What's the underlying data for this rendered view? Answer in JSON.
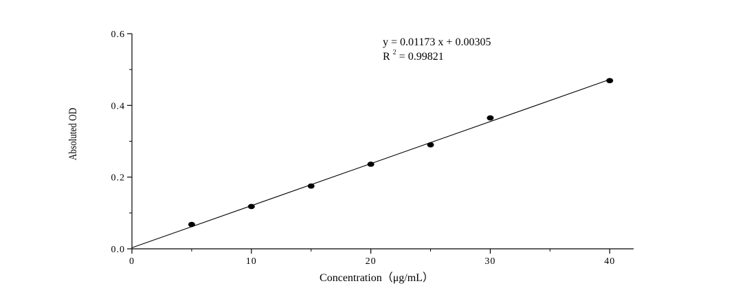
{
  "chart_data": {
    "type": "scatter",
    "title": "",
    "xlabel": "Concentration（μg/mL）",
    "ylabel": "Absoluted OD",
    "xlim": [
      0,
      42
    ],
    "ylim": [
      0,
      0.6
    ],
    "x_ticks": [
      0,
      10,
      20,
      30,
      40
    ],
    "x_tick_labels": [
      "0",
      "10",
      "20",
      "30",
      "40"
    ],
    "y_ticks": [
      0.0,
      0.2,
      0.4,
      0.6
    ],
    "y_tick_labels": [
      "0.0",
      "0.2",
      "0.4",
      "0.6"
    ],
    "grid": false,
    "series": [
      {
        "x": [
          5,
          10,
          15,
          20,
          25,
          30,
          40
        ],
        "y": [
          0.068,
          0.118,
          0.175,
          0.236,
          0.29,
          0.365,
          0.469
        ]
      }
    ],
    "fit": {
      "slope": 0.01173,
      "intercept": 0.00305,
      "x_range": [
        0,
        40
      ]
    },
    "annotations": {
      "equation": "y = 0.01173 x + 0.00305",
      "r2_prefix": "R",
      "r2_sup": "2",
      "r2_value": " = 0.99821"
    },
    "colors": {
      "marker": "#000000",
      "line": "#000000",
      "axis": "#000000"
    }
  }
}
